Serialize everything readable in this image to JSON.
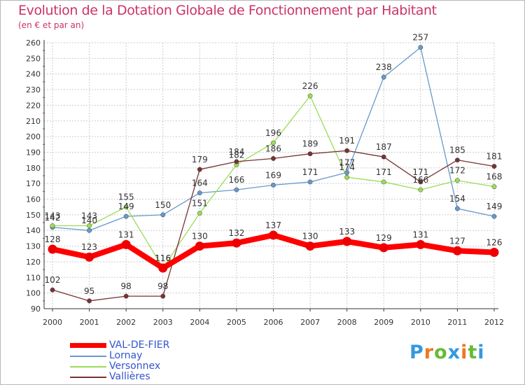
{
  "chart_data": {
    "type": "line",
    "title": "Evolution de la Dotation Globale de Fonctionnement par Habitant",
    "subtitle": "(en € et par an)",
    "xlabel": "",
    "ylabel": "",
    "ylim": [
      90,
      260
    ],
    "ytick_step": 10,
    "grid": true,
    "legend_position": "bottom-left",
    "categories": [
      "2000",
      "2001",
      "2002",
      "2003",
      "2004",
      "2005",
      "2006",
      "2007",
      "2008",
      "2009",
      "2010",
      "2011",
      "2012"
    ],
    "series": [
      {
        "name": "VAL-DE-FIER",
        "color": "#ff0000",
        "values": [
          128,
          123,
          131,
          116,
          130,
          132,
          137,
          130,
          133,
          129,
          131,
          127,
          126
        ]
      },
      {
        "name": "Lornay",
        "color": "#6699cc",
        "values": [
          142,
          140,
          149,
          150,
          164,
          166,
          169,
          171,
          177,
          238,
          257,
          154,
          149
        ]
      },
      {
        "name": "Versonnex",
        "color": "#99dd55",
        "values": [
          143,
          143,
          155,
          116,
          151,
          182,
          196,
          226,
          174,
          171,
          166,
          172,
          168
        ]
      },
      {
        "name": "Vallières",
        "color": "#773333",
        "values": [
          102,
          95,
          98,
          98,
          179,
          184,
          186,
          189,
          191,
          187,
          171,
          185,
          181
        ]
      }
    ]
  },
  "brand": {
    "letters": [
      "P",
      "r",
      "o",
      "x",
      "i",
      "t",
      "i"
    ],
    "colors": [
      "#3399dd",
      "#ee7722",
      "#66bb33",
      "#3399dd",
      "#ee7722",
      "#66bb33",
      "#3399dd"
    ]
  }
}
